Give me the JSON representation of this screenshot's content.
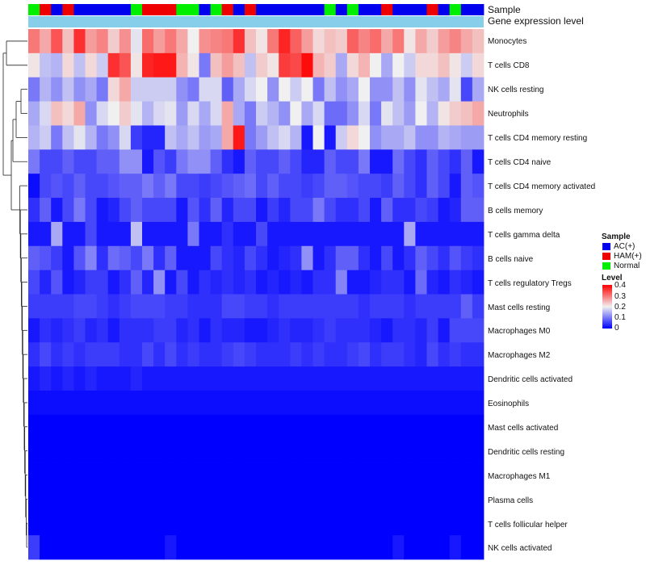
{
  "chart_data": {
    "type": "heatmap",
    "title": "",
    "annotation_labels": [
      "Sample",
      "Gene expression level"
    ],
    "rows": [
      "Monocytes",
      "T cells CD8",
      "NK cells resting",
      "Neutrophils",
      "T cells CD4 memory resting",
      "T cells CD4 naive",
      "T cells CD4 memory activated",
      "B cells memory",
      "T cells gamma delta",
      "B cells naive",
      "T cells regulatory  Tregs",
      "Mast cells resting",
      "Macrophages M0",
      "Macrophages M2",
      "Dendritic cells activated",
      "Eosinophils",
      "Mast cells activated",
      "Dendritic cells resting",
      "Macrophages M1",
      "Plasma cells",
      "T cells follicular helper",
      "NK cells activated"
    ],
    "sample_groups": [
      "N",
      "H",
      "A",
      "H",
      "A",
      "A",
      "A",
      "A",
      "A",
      "N",
      "H",
      "H",
      "H",
      "N",
      "N",
      "A",
      "N",
      "H",
      "A",
      "H",
      "A",
      "A",
      "A",
      "A",
      "A",
      "A",
      "N",
      "A",
      "N",
      "A",
      "A",
      "H",
      "A",
      "A",
      "A",
      "H",
      "A",
      "N",
      "A",
      "A"
    ],
    "sample_legend": {
      "title": "Sample",
      "items": [
        {
          "code": "A",
          "label": "AC(+)",
          "color": "#0000ee"
        },
        {
          "code": "H",
          "label": "HAM(+)",
          "color": "#ee0000"
        },
        {
          "code": "N",
          "label": "Normal",
          "color": "#00ee00"
        }
      ]
    },
    "level_legend": {
      "title": "Level",
      "ticks": [
        "0.4",
        "0.3",
        "0.2",
        "0.1",
        "0"
      ],
      "min": 0,
      "max": 0.4
    },
    "expression_bar_color": "#87ceeb",
    "values": [
      [
        0.3,
        0.26,
        0.33,
        0.24,
        0.36,
        0.27,
        0.29,
        0.23,
        0.28,
        0.19,
        0.31,
        0.27,
        0.3,
        0.26,
        0.2,
        0.28,
        0.29,
        0.3,
        0.36,
        0.24,
        0.21,
        0.3,
        0.37,
        0.32,
        0.27,
        0.22,
        0.24,
        0.23,
        0.32,
        0.29,
        0.31,
        0.26,
        0.3,
        0.21,
        0.26,
        0.23,
        0.27,
        0.29,
        0.26,
        0.24
      ],
      [
        0.21,
        0.16,
        0.15,
        0.22,
        0.16,
        0.22,
        0.17,
        0.36,
        0.33,
        0.21,
        0.37,
        0.38,
        0.38,
        0.25,
        0.21,
        0.1,
        0.24,
        0.27,
        0.24,
        0.16,
        0.23,
        0.21,
        0.35,
        0.34,
        0.39,
        0.25,
        0.23,
        0.14,
        0.22,
        0.25,
        0.2,
        0.14,
        0.2,
        0.17,
        0.22,
        0.22,
        0.24,
        0.21,
        0.17,
        0.22
      ],
      [
        0.1,
        0.15,
        0.12,
        0.16,
        0.12,
        0.14,
        0.1,
        0.22,
        0.26,
        0.17,
        0.17,
        0.17,
        0.17,
        0.12,
        0.1,
        0.18,
        0.18,
        0.08,
        0.14,
        0.18,
        0.2,
        0.12,
        0.2,
        0.17,
        0.2,
        0.1,
        0.16,
        0.12,
        0.14,
        0.2,
        0.12,
        0.12,
        0.16,
        0.12,
        0.19,
        0.16,
        0.14,
        0.19,
        0.06,
        0.14
      ],
      [
        0.14,
        0.18,
        0.24,
        0.22,
        0.26,
        0.12,
        0.18,
        0.2,
        0.23,
        0.19,
        0.15,
        0.18,
        0.19,
        0.13,
        0.18,
        0.14,
        0.18,
        0.26,
        0.14,
        0.1,
        0.17,
        0.15,
        0.12,
        0.2,
        0.14,
        0.18,
        0.09,
        0.09,
        0.12,
        0.18,
        0.1,
        0.19,
        0.16,
        0.13,
        0.2,
        0.15,
        0.21,
        0.23,
        0.24,
        0.26
      ],
      [
        0.15,
        0.17,
        0.1,
        0.16,
        0.19,
        0.15,
        0.1,
        0.12,
        0.18,
        0.05,
        0.03,
        0.03,
        0.16,
        0.14,
        0.16,
        0.13,
        0.14,
        0.26,
        0.38,
        0.1,
        0.13,
        0.16,
        0.18,
        0.15,
        0.02,
        0.2,
        0.02,
        0.17,
        0.22,
        0.2,
        0.12,
        0.14,
        0.14,
        0.16,
        0.12,
        0.12,
        0.15,
        0.14,
        0.13,
        0.13
      ],
      [
        0.1,
        0.06,
        0.06,
        0.08,
        0.06,
        0.06,
        0.08,
        0.08,
        0.12,
        0.12,
        0.02,
        0.07,
        0.05,
        0.1,
        0.12,
        0.12,
        0.08,
        0.04,
        0.02,
        0.08,
        0.06,
        0.06,
        0.08,
        0.06,
        0.03,
        0.03,
        0.08,
        0.06,
        0.06,
        0.1,
        0.02,
        0.02,
        0.09,
        0.06,
        0.04,
        0.08,
        0.06,
        0.04,
        0.08,
        0.02
      ],
      [
        0.01,
        0.06,
        0.07,
        0.06,
        0.08,
        0.06,
        0.06,
        0.07,
        0.08,
        0.08,
        0.1,
        0.08,
        0.1,
        0.06,
        0.06,
        0.05,
        0.06,
        0.07,
        0.08,
        0.09,
        0.06,
        0.08,
        0.06,
        0.06,
        0.05,
        0.06,
        0.08,
        0.08,
        0.07,
        0.06,
        0.06,
        0.05,
        0.08,
        0.06,
        0.04,
        0.08,
        0.06,
        0.02,
        0.08,
        0.07
      ],
      [
        0.04,
        0.08,
        0.02,
        0.06,
        0.1,
        0.06,
        0.02,
        0.03,
        0.06,
        0.08,
        0.06,
        0.06,
        0.06,
        0.02,
        0.07,
        0.04,
        0.08,
        0.03,
        0.06,
        0.06,
        0.02,
        0.05,
        0.03,
        0.06,
        0.06,
        0.1,
        0.06,
        0.04,
        0.04,
        0.06,
        0.02,
        0.08,
        0.04,
        0.04,
        0.06,
        0.05,
        0.02,
        0.03,
        0.08,
        0.08
      ],
      [
        0.02,
        0.02,
        0.14,
        0.02,
        0.02,
        0.06,
        0.02,
        0.02,
        0.02,
        0.16,
        0.02,
        0.02,
        0.02,
        0.02,
        0.1,
        0.02,
        0.02,
        0.04,
        0.02,
        0.02,
        0.06,
        0.02,
        0.02,
        0.02,
        0.02,
        0.02,
        0.02,
        0.02,
        0.02,
        0.02,
        0.02,
        0.02,
        0.02,
        0.14,
        0.02,
        0.02,
        0.02,
        0.02,
        0.02,
        0.02
      ],
      [
        0.08,
        0.07,
        0.05,
        0.02,
        0.07,
        0.11,
        0.04,
        0.09,
        0.08,
        0.06,
        0.1,
        0.04,
        0.08,
        0.02,
        0.02,
        0.02,
        0.06,
        0.04,
        0.03,
        0.06,
        0.04,
        0.02,
        0.03,
        0.04,
        0.12,
        0.02,
        0.04,
        0.08,
        0.08,
        0.04,
        0.02,
        0.06,
        0.02,
        0.04,
        0.08,
        0.06,
        0.04,
        0.07,
        0.05,
        0.04
      ],
      [
        0.06,
        0.03,
        0.07,
        0.02,
        0.03,
        0.05,
        0.05,
        0.02,
        0.04,
        0.08,
        0.03,
        0.12,
        0.02,
        0.06,
        0.02,
        0.04,
        0.03,
        0.04,
        0.03,
        0.04,
        0.02,
        0.03,
        0.02,
        0.03,
        0.02,
        0.04,
        0.04,
        0.11,
        0.02,
        0.02,
        0.03,
        0.04,
        0.04,
        0.02,
        0.09,
        0.03,
        0.02,
        0.04,
        0.03,
        0.02
      ],
      [
        0.05,
        0.05,
        0.05,
        0.05,
        0.06,
        0.06,
        0.05,
        0.04,
        0.05,
        0.06,
        0.06,
        0.06,
        0.05,
        0.05,
        0.04,
        0.04,
        0.04,
        0.06,
        0.06,
        0.05,
        0.05,
        0.04,
        0.05,
        0.05,
        0.05,
        0.05,
        0.05,
        0.05,
        0.05,
        0.04,
        0.05,
        0.05,
        0.05,
        0.04,
        0.05,
        0.05,
        0.05,
        0.05,
        0.08,
        0.05
      ],
      [
        0.02,
        0.04,
        0.03,
        0.04,
        0.05,
        0.03,
        0.04,
        0.02,
        0.04,
        0.04,
        0.04,
        0.05,
        0.05,
        0.03,
        0.04,
        0.02,
        0.04,
        0.03,
        0.03,
        0.02,
        0.02,
        0.03,
        0.04,
        0.03,
        0.03,
        0.04,
        0.05,
        0.04,
        0.04,
        0.04,
        0.03,
        0.02,
        0.04,
        0.04,
        0.03,
        0.05,
        0.02,
        0.06,
        0.06,
        0.06
      ],
      [
        0.04,
        0.06,
        0.04,
        0.05,
        0.04,
        0.05,
        0.05,
        0.05,
        0.04,
        0.04,
        0.06,
        0.04,
        0.06,
        0.04,
        0.05,
        0.04,
        0.04,
        0.05,
        0.06,
        0.05,
        0.04,
        0.04,
        0.04,
        0.05,
        0.04,
        0.05,
        0.04,
        0.04,
        0.05,
        0.06,
        0.04,
        0.05,
        0.05,
        0.04,
        0.03,
        0.06,
        0.04,
        0.05,
        0.04,
        0.04
      ],
      [
        0.02,
        0.03,
        0.02,
        0.03,
        0.02,
        0.03,
        0.02,
        0.02,
        0.02,
        0.03,
        0.02,
        0.02,
        0.02,
        0.02,
        0.02,
        0.02,
        0.02,
        0.02,
        0.02,
        0.02,
        0.02,
        0.02,
        0.02,
        0.02,
        0.02,
        0.02,
        0.02,
        0.02,
        0.02,
        0.02,
        0.02,
        0.02,
        0.02,
        0.02,
        0.02,
        0.02,
        0.02,
        0.02,
        0.02,
        0.02
      ],
      [
        0.01,
        0.01,
        0.01,
        0.01,
        0.01,
        0.01,
        0.01,
        0.01,
        0.01,
        0.01,
        0.01,
        0.01,
        0.01,
        0.01,
        0.01,
        0.01,
        0.01,
        0.01,
        0.01,
        0.01,
        0.01,
        0.01,
        0.01,
        0.01,
        0.01,
        0.01,
        0.01,
        0.01,
        0.01,
        0.01,
        0.01,
        0.01,
        0.01,
        0.01,
        0.01,
        0.01,
        0.01,
        0.01,
        0.01,
        0.01
      ],
      [
        0.0,
        0.0,
        0.0,
        0.0,
        0.0,
        0.0,
        0.0,
        0.0,
        0.0,
        0.0,
        0.0,
        0.0,
        0.0,
        0.0,
        0.0,
        0.0,
        0.0,
        0.0,
        0.0,
        0.0,
        0.0,
        0.0,
        0.0,
        0.0,
        0.0,
        0.0,
        0.0,
        0.0,
        0.0,
        0.0,
        0.0,
        0.0,
        0.0,
        0.0,
        0.0,
        0.0,
        0.0,
        0.0,
        0.0,
        0.0
      ],
      [
        0.0,
        0.0,
        0.0,
        0.0,
        0.0,
        0.0,
        0.0,
        0.0,
        0.0,
        0.0,
        0.0,
        0.0,
        0.0,
        0.0,
        0.0,
        0.0,
        0.0,
        0.0,
        0.0,
        0.0,
        0.0,
        0.0,
        0.0,
        0.0,
        0.0,
        0.0,
        0.0,
        0.0,
        0.0,
        0.0,
        0.0,
        0.0,
        0.0,
        0.0,
        0.0,
        0.0,
        0.0,
        0.0,
        0.0,
        0.0
      ],
      [
        0.0,
        0.0,
        0.0,
        0.0,
        0.0,
        0.0,
        0.0,
        0.0,
        0.0,
        0.0,
        0.0,
        0.0,
        0.0,
        0.0,
        0.0,
        0.0,
        0.0,
        0.0,
        0.0,
        0.0,
        0.0,
        0.0,
        0.0,
        0.0,
        0.0,
        0.0,
        0.0,
        0.0,
        0.0,
        0.0,
        0.0,
        0.0,
        0.0,
        0.0,
        0.0,
        0.0,
        0.0,
        0.0,
        0.0,
        0.0
      ],
      [
        0.0,
        0.0,
        0.0,
        0.0,
        0.0,
        0.0,
        0.0,
        0.0,
        0.0,
        0.0,
        0.0,
        0.0,
        0.0,
        0.0,
        0.0,
        0.0,
        0.0,
        0.0,
        0.0,
        0.0,
        0.0,
        0.0,
        0.0,
        0.0,
        0.0,
        0.0,
        0.0,
        0.0,
        0.0,
        0.0,
        0.0,
        0.0,
        0.0,
        0.0,
        0.0,
        0.0,
        0.0,
        0.0,
        0.0,
        0.0
      ],
      [
        0.0,
        0.0,
        0.0,
        0.0,
        0.0,
        0.0,
        0.0,
        0.0,
        0.0,
        0.0,
        0.0,
        0.0,
        0.0,
        0.0,
        0.0,
        0.0,
        0.0,
        0.0,
        0.0,
        0.0,
        0.0,
        0.0,
        0.0,
        0.0,
        0.0,
        0.0,
        0.0,
        0.0,
        0.0,
        0.0,
        0.0,
        0.0,
        0.0,
        0.0,
        0.0,
        0.0,
        0.0,
        0.0,
        0.0,
        0.0
      ],
      [
        0.05,
        0.0,
        0.0,
        0.0,
        0.0,
        0.0,
        0.0,
        0.0,
        0.0,
        0.0,
        0.0,
        0.0,
        0.02,
        0.0,
        0.0,
        0.0,
        0.0,
        0.0,
        0.0,
        0.0,
        0.0,
        0.0,
        0.0,
        0.0,
        0.0,
        0.0,
        0.0,
        0.0,
        0.0,
        0.0,
        0.0,
        0.0,
        0.02,
        0.0,
        0.0,
        0.0,
        0.0,
        0.02,
        0.0,
        0.0
      ]
    ]
  }
}
